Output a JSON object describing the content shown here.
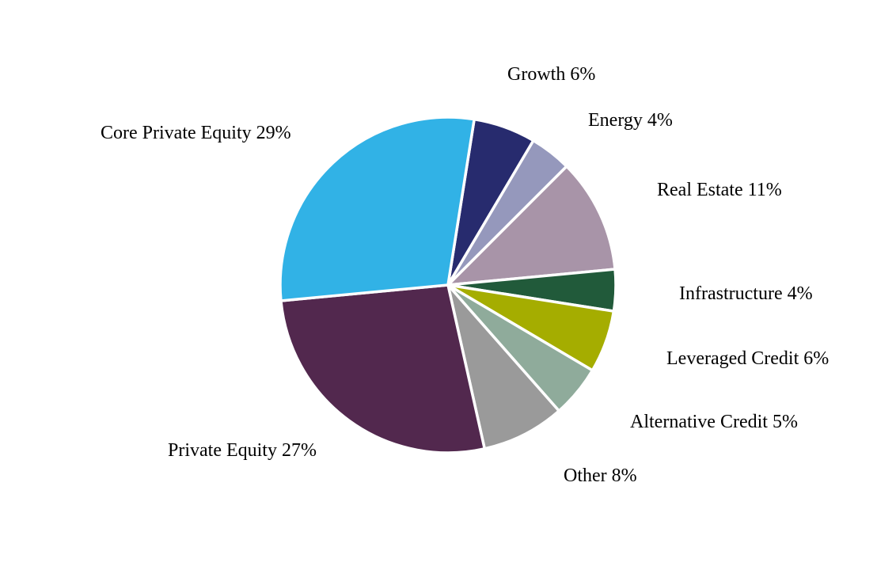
{
  "chart_data": {
    "type": "pie",
    "title": "",
    "start_category": "Growth",
    "direction": "clockwise",
    "slices": [
      {
        "label": "Growth 6%",
        "category": "Growth",
        "value": 6,
        "color": "#272B6E"
      },
      {
        "label": "Energy 4%",
        "category": "Energy",
        "value": 4,
        "color": "#9598BC"
      },
      {
        "label": "Real Estate 11%",
        "category": "Real Estate",
        "value": 11,
        "color": "#A894A8"
      },
      {
        "label": "Infrastructure 4%",
        "category": "Infrastructure",
        "value": 4,
        "color": "#215A3A"
      },
      {
        "label": "Leveraged Credit 6%",
        "category": "Leveraged Credit",
        "value": 6,
        "color": "#A5AD00"
      },
      {
        "label": "Alternative Credit 5%",
        "category": "Alternative Credit",
        "value": 5,
        "color": "#8FAB9B"
      },
      {
        "label": "Other 8%",
        "category": "Other",
        "value": 8,
        "color": "#9A9A9A"
      },
      {
        "label": "Private Equity 27%",
        "category": "Private Equity",
        "value": 27,
        "color": "#52284E"
      },
      {
        "label": "Core Private Equity 29%",
        "category": "Core Private Equity",
        "value": 29,
        "color": "#31B2E6"
      }
    ]
  }
}
